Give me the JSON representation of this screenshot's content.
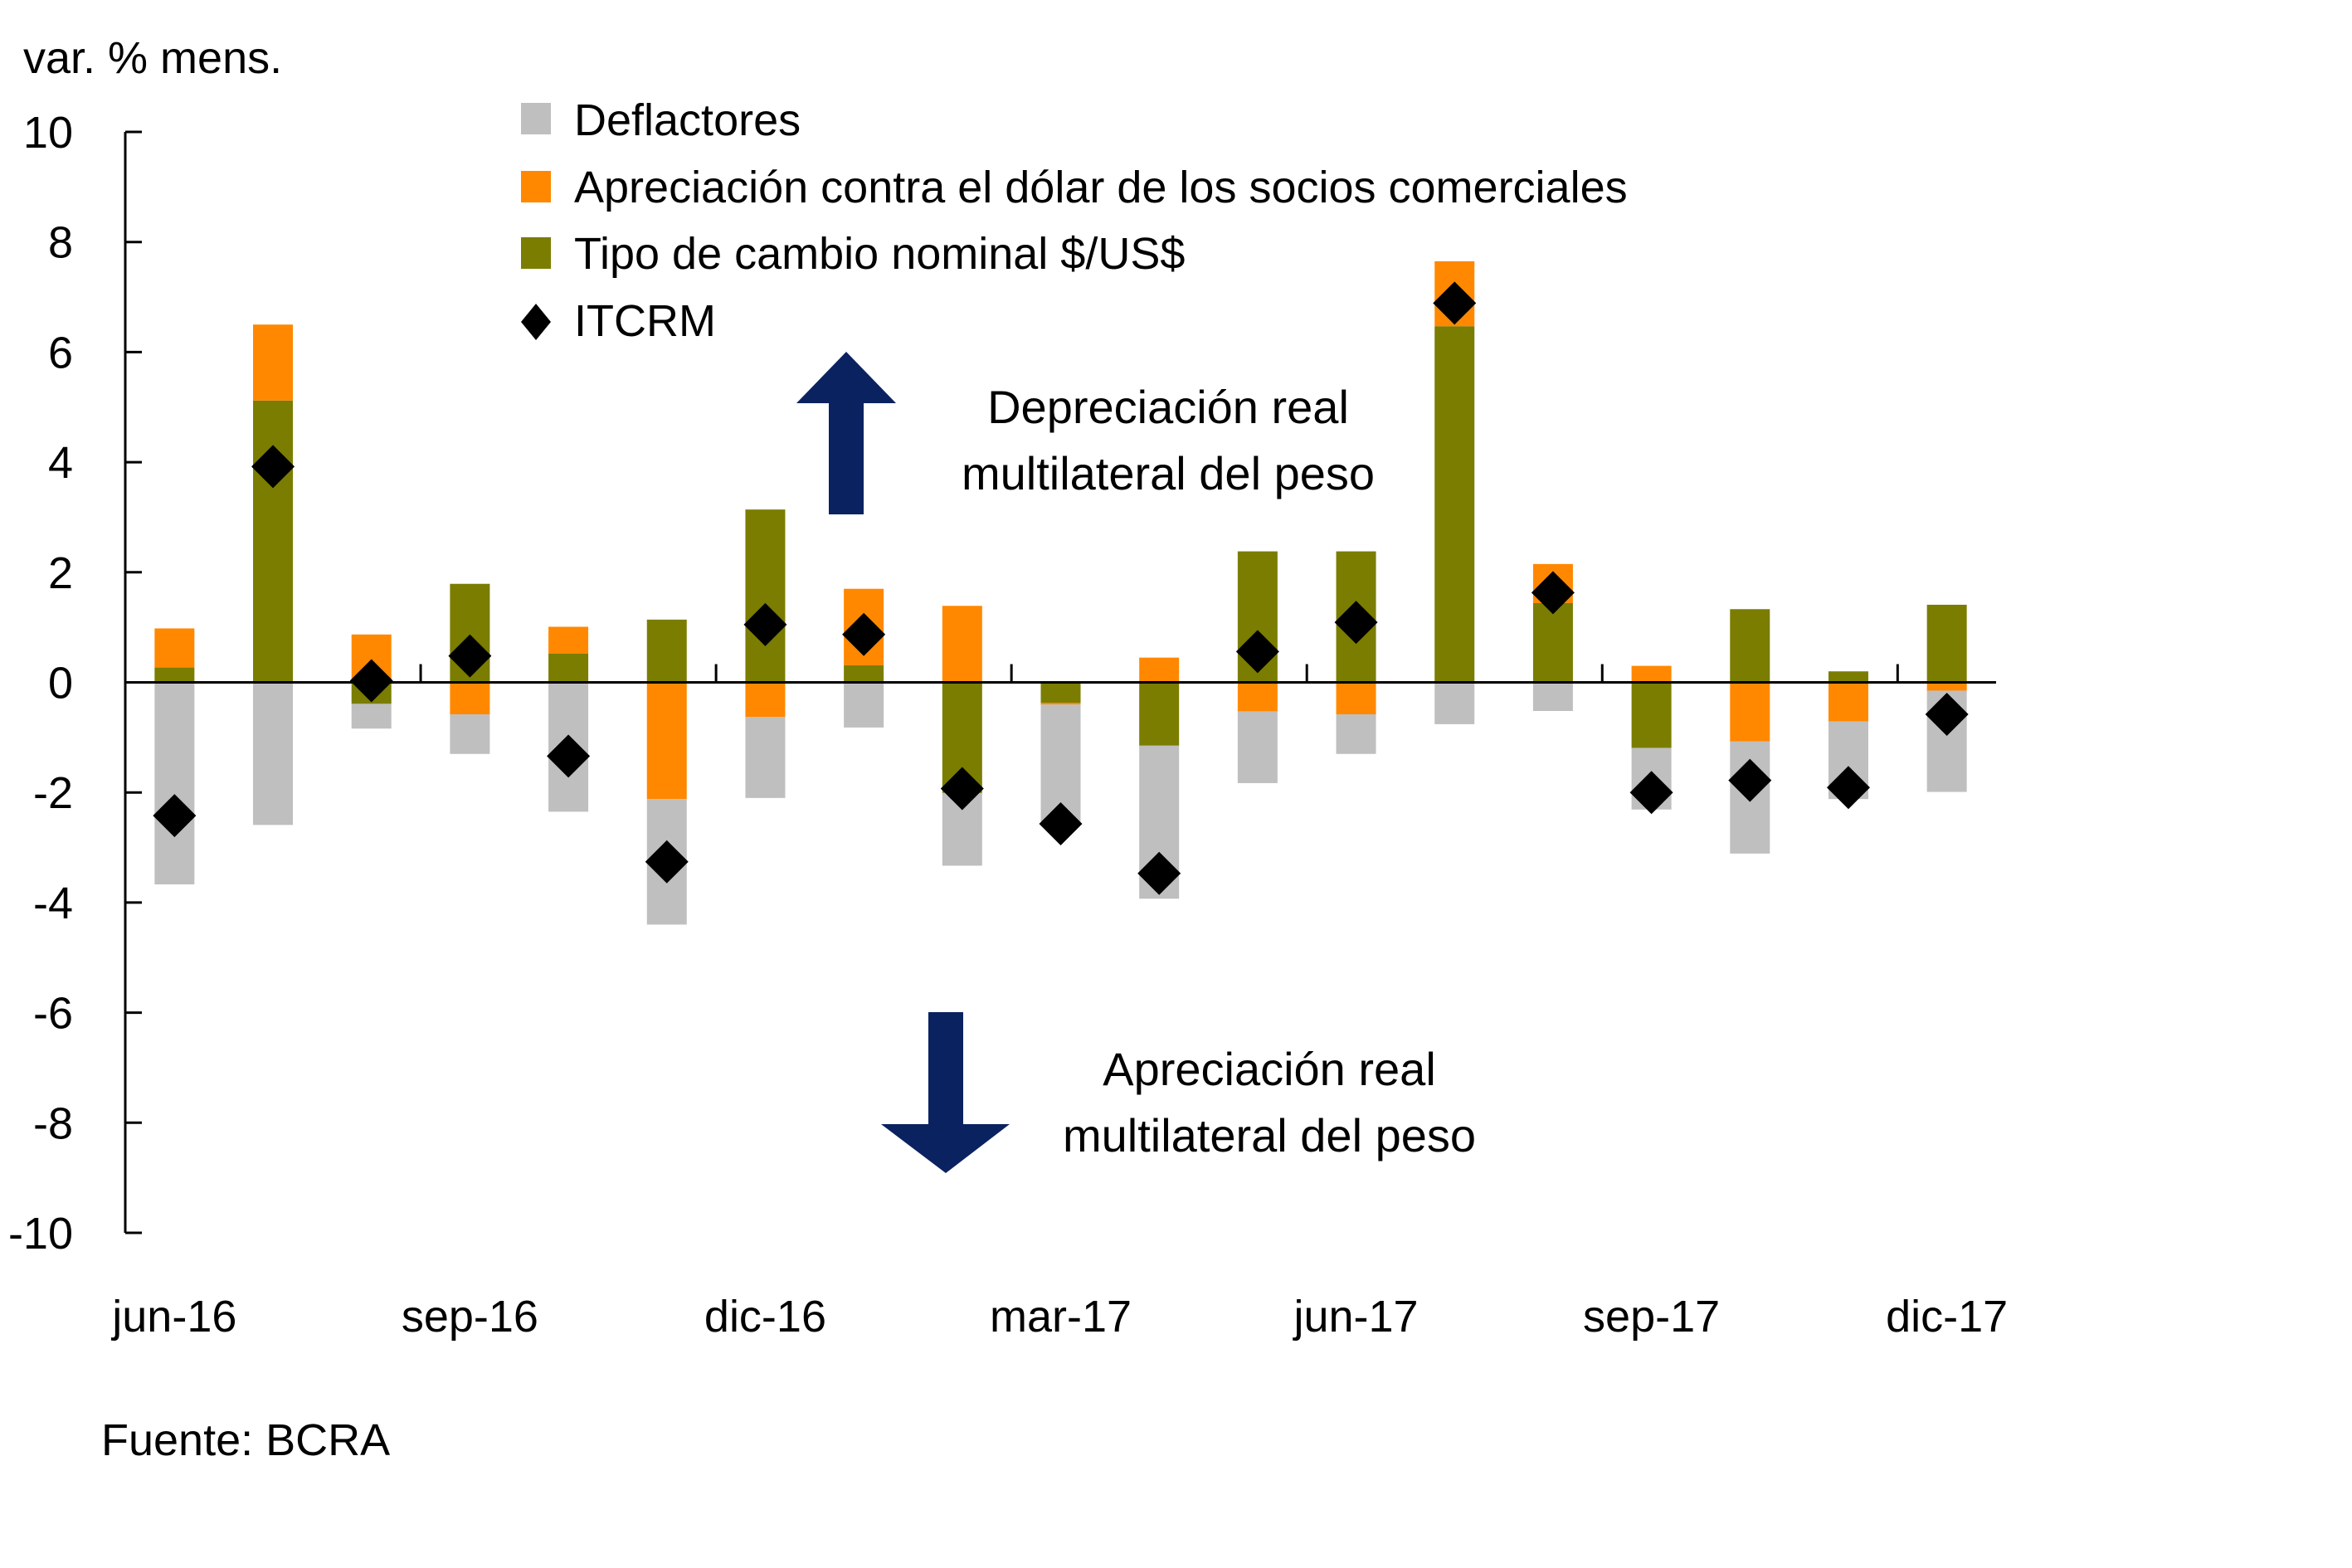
{
  "chart_data": {
    "type": "bar",
    "stacked": true,
    "title": "",
    "ylabel": "var. % mens.",
    "xlabel": "",
    "ylim": [
      -10,
      10
    ],
    "yticks": [
      10,
      8,
      6,
      4,
      2,
      0,
      -2,
      -4,
      -6,
      -8,
      -10
    ],
    "grid": false,
    "legend_position": "top-center",
    "categories": [
      "jun-16",
      "jul-16",
      "ago-16",
      "sep-16",
      "oct-16",
      "nov-16",
      "dic-16",
      "ene-17",
      "feb-17",
      "mar-17",
      "abr-17",
      "may-17",
      "jun-17",
      "jul-17",
      "ago-17",
      "sep-17",
      "oct-17",
      "nov-17",
      "dic-17"
    ],
    "xtick_labels": [
      {
        "index": 0,
        "label": "jun-16"
      },
      {
        "index": 3,
        "label": "sep-16"
      },
      {
        "index": 6,
        "label": "dic-16"
      },
      {
        "index": 9,
        "label": "mar-17"
      },
      {
        "index": 12,
        "label": "jun-17"
      },
      {
        "index": 15,
        "label": "sep-17"
      },
      {
        "index": 18,
        "label": "dic-17"
      }
    ],
    "series": [
      {
        "name": "Deflactores",
        "kind": "bar",
        "color": "#bfbfbf",
        "values": [
          -3.67,
          -2.59,
          -0.45,
          -0.72,
          -2.35,
          -2.28,
          -1.47,
          -0.82,
          -1.32,
          -2.13,
          -2.78,
          -1.3,
          -0.72,
          -0.76,
          -0.52,
          -1.12,
          -2.04,
          -1.41,
          -1.84
        ]
      },
      {
        "name": "Apreciación contra el dólar de los socios comerciales",
        "kind": "bar",
        "color": "#ff8800",
        "values": [
          0.71,
          1.38,
          0.87,
          -0.58,
          0.49,
          -2.12,
          -0.63,
          1.39,
          1.39,
          -0.03,
          0.45,
          -0.53,
          -0.58,
          1.18,
          0.71,
          0.3,
          -1.07,
          -0.71,
          -0.15
        ]
      },
      {
        "name": "Tipo de cambio nominal $/US$",
        "kind": "bar",
        "color": "#7a7d00",
        "values": [
          0.27,
          5.12,
          -0.39,
          1.79,
          0.52,
          1.14,
          3.14,
          0.31,
          -2.01,
          -0.37,
          -1.15,
          2.38,
          2.38,
          6.47,
          1.44,
          -1.19,
          1.33,
          0.2,
          1.41
        ]
      },
      {
        "name": "ITCRM",
        "kind": "marker",
        "marker": "diamond",
        "color": "#000000",
        "values": [
          -2.42,
          3.92,
          0.03,
          0.48,
          -1.34,
          -3.26,
          1.05,
          0.87,
          -1.93,
          -2.57,
          -3.47,
          0.56,
          1.09,
          6.89,
          1.63,
          -2.0,
          -1.78,
          -1.91,
          -0.58
        ]
      }
    ],
    "annotations": [
      {
        "id": "up",
        "direction": "up",
        "color": "#0b2260",
        "lines": [
          "Depreciación real",
          "multilateral del peso"
        ]
      },
      {
        "id": "down",
        "direction": "down",
        "color": "#0b2260",
        "lines": [
          "Apreciación real",
          "multilateral del peso"
        ]
      }
    ],
    "source": "Fuente: BCRA"
  }
}
